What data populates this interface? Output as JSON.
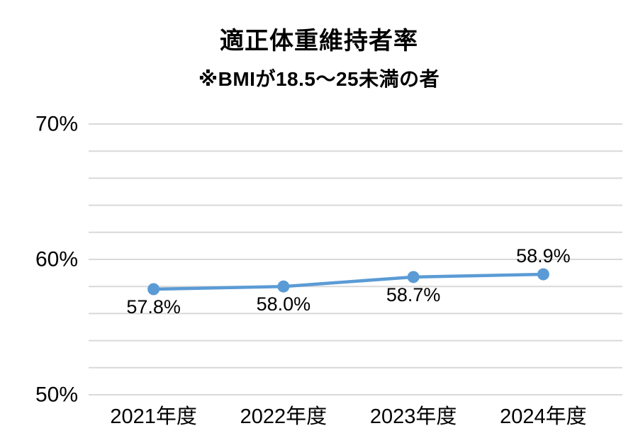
{
  "chart_data": {
    "type": "line",
    "title": "適正体重維持者率",
    "subtitle": "※BMIが18.5～25未満の者",
    "categories": [
      "2021年度",
      "2022年度",
      "2023年度",
      "2024年度"
    ],
    "series": [
      {
        "name": "適正体重維持者率",
        "values": [
          57.8,
          58.0,
          58.7,
          58.9
        ],
        "data_labels": [
          "57.8%",
          "58.0%",
          "58.7%",
          "58.9%"
        ],
        "label_positions": [
          "below",
          "below",
          "below",
          "above"
        ],
        "color": "#5B9BD5"
      }
    ],
    "ylim": [
      50,
      70
    ],
    "y_ticks": [
      {
        "value": 70,
        "label": "70%"
      },
      {
        "value": 60,
        "label": "60%"
      },
      {
        "value": 50,
        "label": "50%"
      }
    ],
    "gridline_interval": 2,
    "grid": true,
    "legend": "none",
    "xlabel": "",
    "ylabel": "",
    "colors": {
      "line": "#5B9BD5",
      "marker": "#5B9BD5",
      "grid": "#D9D9D9",
      "text": "#000000",
      "background": "#FFFFFF"
    }
  }
}
